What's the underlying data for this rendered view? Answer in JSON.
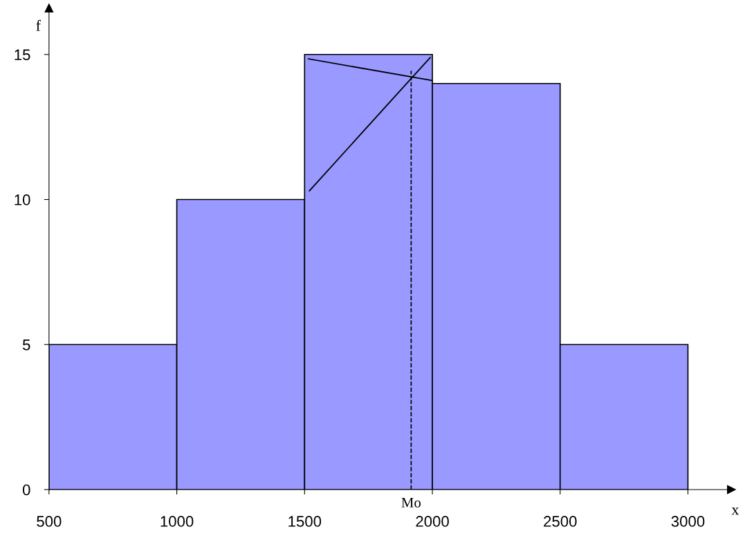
{
  "chart_data": {
    "type": "histogram",
    "bins": [
      500,
      1000,
      1500,
      2000,
      2500,
      3000
    ],
    "values": [
      5,
      10,
      15,
      14,
      5
    ],
    "color": "#9999ff",
    "series": [
      {
        "type": "line",
        "x": [
          1519,
          1992
        ],
        "values": [
          10.3,
          14.9
        ],
        "color": "#000000"
      },
      {
        "type": "line",
        "x": [
          1515,
          2000
        ],
        "values": [
          14.85,
          14.1
        ],
        "color": "#000000"
      }
    ],
    "ref_lines": [
      {
        "axis": "x",
        "value": 1917,
        "label": "Mo",
        "color": "#000000",
        "line_style": "dashed"
      }
    ],
    "xlabel": "x",
    "ylabel": "f",
    "xlim": [
      500,
      3170
    ],
    "ylim": [
      0,
      16.6
    ],
    "xticks": [
      500,
      1000,
      1500,
      2000,
      2500,
      3000
    ],
    "yticks": [
      0,
      5,
      10,
      15
    ],
    "grid": false,
    "legend": false
  }
}
